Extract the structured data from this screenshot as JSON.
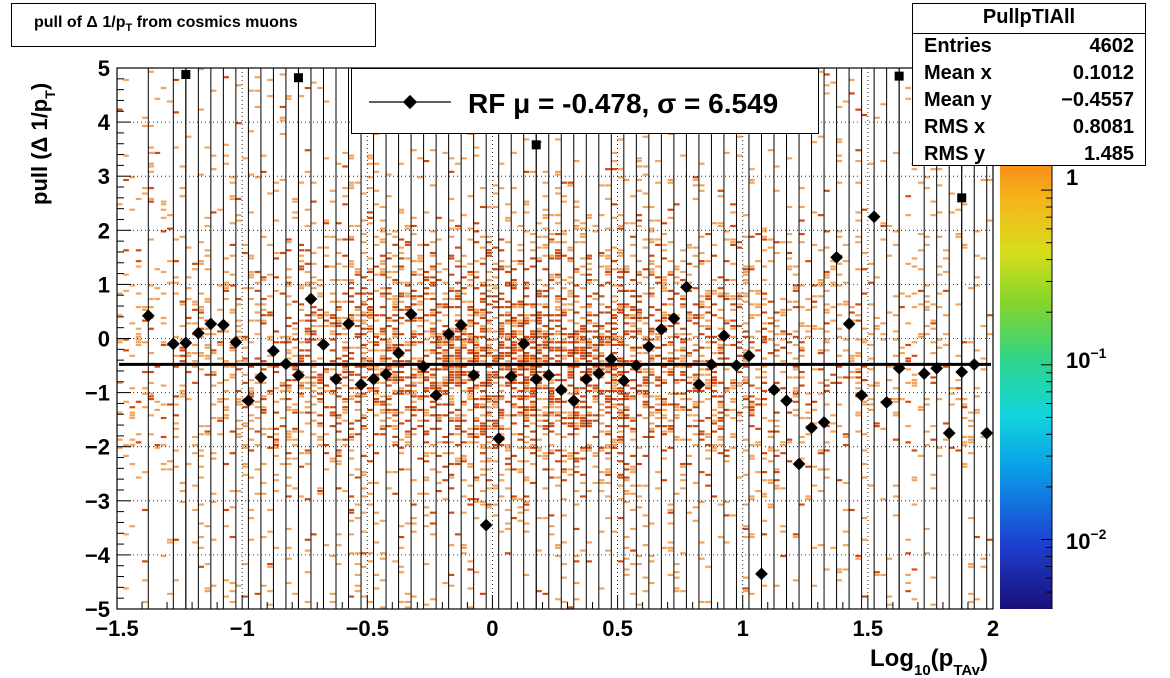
{
  "title": "pull of Δ 1/p_T from cosmics muons",
  "title_parts": {
    "pre": "pull of Δ 1/p",
    "sub": "T",
    "post": " from cosmics muons"
  },
  "stats": {
    "name": "PullpTIAll",
    "rows": [
      {
        "label": "Entries",
        "value": "4602"
      },
      {
        "label": "Mean x",
        "value": "0.1012"
      },
      {
        "label": "Mean y",
        "value": "−0.4557"
      },
      {
        "label": "RMS x",
        "value": "0.8081"
      },
      {
        "label": "RMS y",
        "value": "1.485"
      }
    ]
  },
  "legend": {
    "label": "RF μ = -0.478, σ =   6.549"
  },
  "colors": {
    "hist_dark": "#d24a0c",
    "hist_light": "#f2a35c",
    "marker": "#000000",
    "fit_line": "#000000"
  },
  "chart_data": {
    "type": "scatter",
    "xlabel": "Log10(p_TAv)",
    "xlabel_parts": {
      "pre": "Log",
      "sub1": "10",
      "mid": "(p",
      "sub2": "TAv",
      "post": ")"
    },
    "ylabel": "pull (Δ 1/p_T)",
    "ylabel_parts": {
      "pre": "pull (Δ 1/p",
      "sub": "T",
      "post": ")"
    },
    "xlim": [
      -1.5,
      2
    ],
    "ylim": [
      -5,
      5
    ],
    "xticks": [
      -1.5,
      -1,
      -0.5,
      0,
      0.5,
      1,
      1.5,
      2
    ],
    "xtick_labels": [
      "−1.5",
      "−1",
      "−0.5",
      "0",
      "0.5",
      "1",
      "1.5",
      "2"
    ],
    "yticks": [
      -5,
      -4,
      -3,
      -2,
      -1,
      0,
      1,
      2,
      3,
      4,
      5
    ],
    "ytick_labels": [
      "−5",
      "−4",
      "−3",
      "−2",
      "−1",
      "0",
      "1",
      "2",
      "3",
      "4",
      "5"
    ],
    "grid": true,
    "fit_line_y": -0.478,
    "colorbar": {
      "scale": "log",
      "range": [
        0.004,
        5
      ],
      "labels": [
        "1",
        "10^-1",
        "10^-2"
      ]
    },
    "series": [
      {
        "name": "RF",
        "x": [
          -1.375,
          -1.275,
          -1.225,
          -1.175,
          -1.125,
          -1.075,
          -1.025,
          -0.975,
          -0.925,
          -0.875,
          -0.825,
          -0.775,
          -0.725,
          -0.675,
          -0.625,
          -0.575,
          -0.525,
          -0.475,
          -0.425,
          -0.375,
          -0.325,
          -0.275,
          -0.225,
          -0.175,
          -0.125,
          -0.075,
          -0.025,
          0.025,
          0.075,
          0.125,
          0.175,
          0.225,
          0.275,
          0.325,
          0.375,
          0.425,
          0.475,
          0.525,
          0.575,
          0.625,
          0.675,
          0.725,
          0.775,
          0.825,
          0.875,
          0.925,
          0.975,
          1.025,
          1.075,
          1.125,
          1.175,
          1.225,
          1.275,
          1.325,
          1.375,
          1.425,
          1.475,
          1.525,
          1.575,
          1.625,
          1.725,
          1.775,
          1.825,
          1.875,
          1.925,
          1.975
        ],
        "y": [
          0.42,
          -0.1,
          -0.08,
          0.1,
          0.27,
          0.25,
          -0.07,
          -1.15,
          -0.72,
          -0.23,
          -0.47,
          -0.68,
          0.73,
          -0.11,
          -0.75,
          0.27,
          -0.85,
          -0.75,
          -0.66,
          -0.27,
          0.45,
          -0.52,
          -1.05,
          0.08,
          0.25,
          -0.68,
          -3.45,
          -1.85,
          -0.7,
          -0.1,
          -0.75,
          -0.68,
          -0.95,
          -1.15,
          -0.75,
          -0.65,
          -0.38,
          -0.78,
          -0.5,
          -0.15,
          0.17,
          0.37,
          0.95,
          -0.85,
          -0.48,
          0.05,
          -0.5,
          -0.32,
          -4.35,
          -0.95,
          -1.15,
          -2.32,
          -1.65,
          -1.55,
          1.5,
          0.27,
          -1.05,
          2.25,
          -1.18,
          -0.55,
          -0.65,
          -0.55,
          -1.75,
          -0.62,
          -0.48,
          -1.75
        ]
      },
      {
        "name": "overflow",
        "x": [
          -1.225,
          -0.775,
          0.175,
          1.625,
          1.875
        ],
        "y": [
          4.88,
          4.82,
          3.58,
          4.85,
          2.6
        ]
      }
    ]
  }
}
